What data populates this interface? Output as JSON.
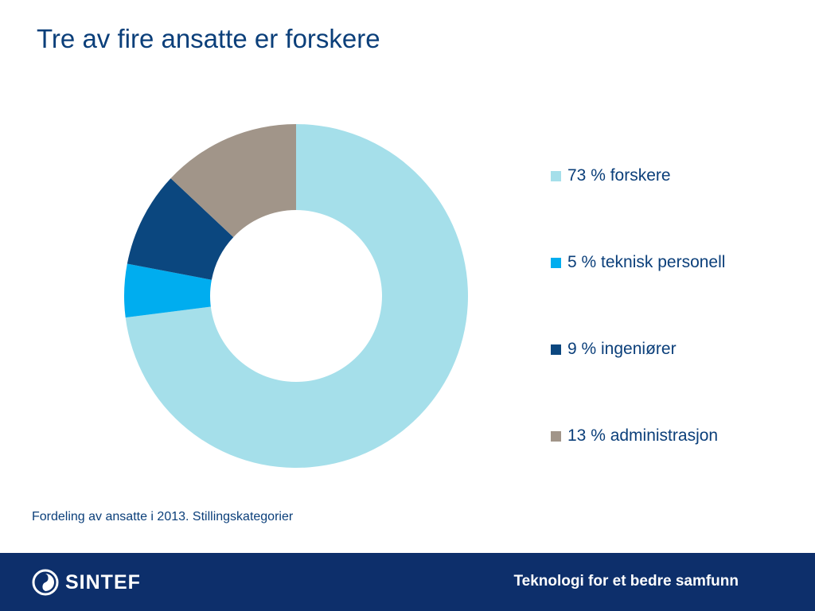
{
  "slide": {
    "title": "Tre av fire ansatte er forskere",
    "caption": "Fordeling av ansatte i 2013. Stillingskategorier"
  },
  "chart_data": {
    "type": "pie",
    "variant": "donut",
    "title": "",
    "legend_position": "right",
    "slices": [
      {
        "label": "73 % forskere",
        "value": 73,
        "color": "#a5dfea"
      },
      {
        "label": "5 % teknisk personell",
        "value": 5,
        "color": "#00adef"
      },
      {
        "label": "9 % ingeniører",
        "value": 9,
        "color": "#0b477f"
      },
      {
        "label": "13 % administrasjon",
        "value": 13,
        "color": "#a19589"
      }
    ]
  },
  "footer": {
    "logo_text": "SINTEF",
    "tagline": "Teknologi for et bedre samfunn",
    "background_color": "#0d2f6b"
  }
}
